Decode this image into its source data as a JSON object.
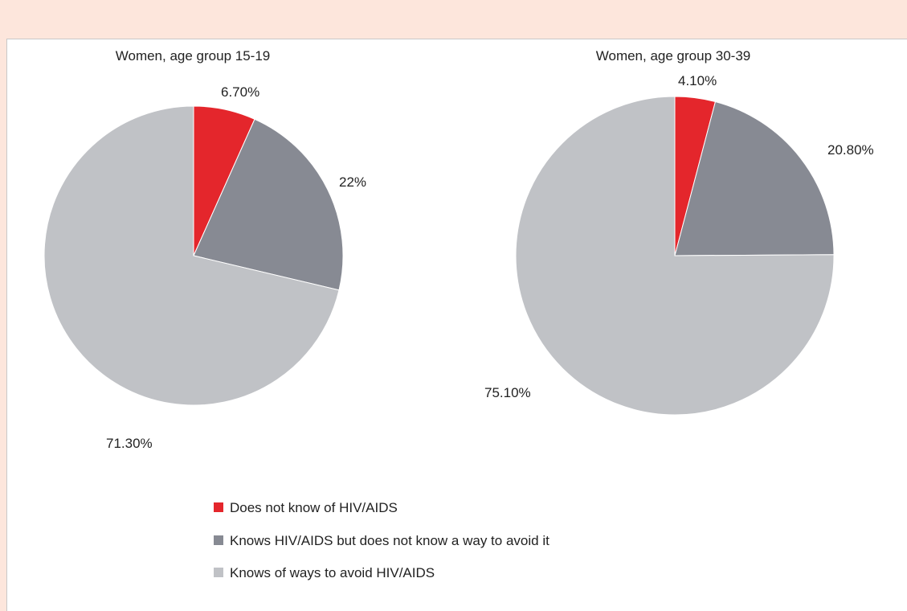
{
  "chart_data": [
    {
      "type": "pie",
      "title": "Women, age group 15-19",
      "categories": [
        "Does not know of HIV/AIDS",
        "Knows HIV/AIDS but does not know a way to avoid it",
        "Knows of ways to avoid HIV/AIDS"
      ],
      "values": [
        6.7,
        22,
        71.3
      ],
      "labels": [
        "6.70%",
        "22%",
        "71.30%"
      ]
    },
    {
      "type": "pie",
      "title": "Women, age group 30-39",
      "categories": [
        "Does not know of HIV/AIDS",
        "Knows HIV/AIDS but does not know a way to avoid it",
        "Knows of ways to avoid HIV/AIDS"
      ],
      "values": [
        4.1,
        20.8,
        75.1
      ],
      "labels": [
        "4.10%",
        "20.80%",
        "75.10%"
      ]
    }
  ],
  "legend": {
    "placement": "bottom-center",
    "items": [
      {
        "label": "Does not know of HIV/AIDS",
        "color": "#e4262c"
      },
      {
        "label": "Knows HIV/AIDS but does not know a way to avoid it",
        "color": "#878a93"
      },
      {
        "label": "Knows of ways to avoid HIV/AIDS",
        "color": "#c0c2c6"
      }
    ]
  }
}
